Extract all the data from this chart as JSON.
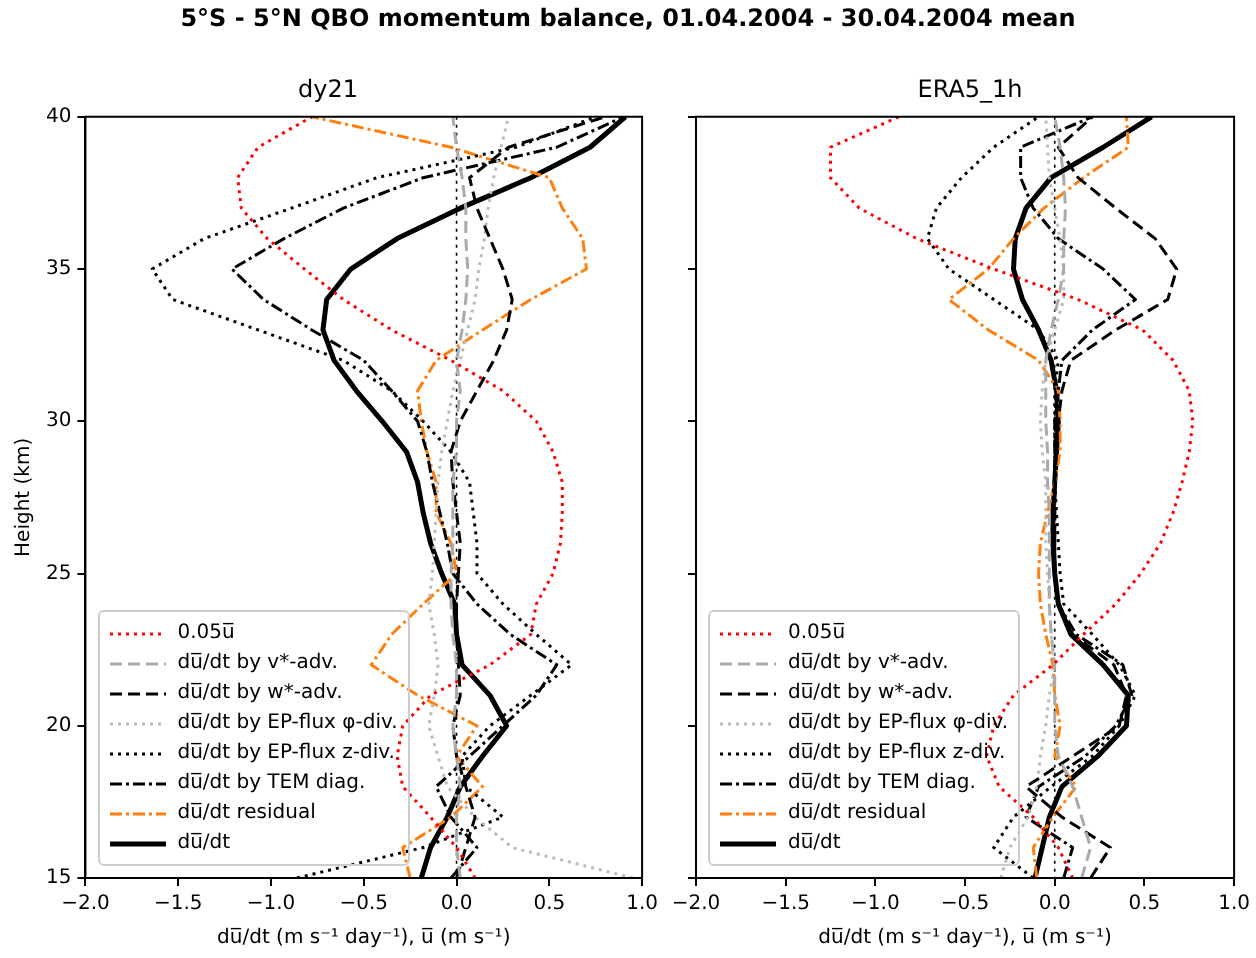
{
  "chart_data": [
    {
      "type": "line",
      "title": "dy21",
      "annotations": [
        "5°S - 5°N QBO momentum balance, 01.04.2004 - 30.04.2004 mean"
      ],
      "xlabel": "du̅/dt (m s⁻¹ day⁻¹), u̅ (m s⁻¹)",
      "ylabel": "Height (km)",
      "xlim": [
        -2,
        1
      ],
      "xticks": [
        {
          "value": -2,
          "label": "−2.0"
        },
        {
          "value": -1.5,
          "label": "−1.5"
        },
        {
          "value": -1,
          "label": "−1.0"
        },
        {
          "value": -0.5,
          "label": "−0.5"
        },
        {
          "value": 0,
          "label": "0.0"
        },
        {
          "value": 0.5,
          "label": "0.5"
        },
        {
          "value": 1,
          "label": "1.0"
        }
      ],
      "ylim": [
        15,
        40
      ],
      "yticks": [
        15,
        20,
        25,
        30,
        35,
        40
      ],
      "grid": false,
      "legend": "bottom left",
      "marker": "none",
      "ref_lines": [
        {
          "axis": "x",
          "value": 0,
          "color": "#000000",
          "line_style": "dotted"
        }
      ],
      "series": [
        {
          "name": "0.05u̅",
          "color": "#ff0000",
          "line_style": "dotted",
          "x": [
            0.1,
            0.0,
            -0.14,
            -0.29,
            -0.32,
            -0.29,
            -0.14,
            0.18,
            0.4,
            0.43,
            0.52,
            0.56,
            0.57,
            0.57,
            0.52,
            0.43,
            0.25,
            -0.03,
            -0.35,
            -0.61,
            -0.82,
            -1.02,
            -1.16,
            -1.18,
            -1.07,
            -0.78
          ],
          "values": [
            15,
            16,
            17,
            18,
            19,
            20,
            21,
            22,
            23,
            24,
            25,
            26,
            27,
            28,
            29,
            30,
            31,
            32,
            33,
            34,
            35,
            36,
            37,
            38,
            39,
            40
          ]
        },
        {
          "name": "du̅/dt by v*-adv.",
          "color": "#aaaaaa",
          "line_style": "dashed",
          "x": [
            0.02,
            0.0,
            0.0,
            0.02,
            0.0,
            -0.02,
            0.0,
            0.0,
            -0.02,
            -0.03,
            -0.03,
            -0.02,
            -0.02,
            -0.02,
            0.0,
            0.0,
            0.02,
            0.0,
            0.03,
            0.05,
            0.06,
            0.05,
            0.05,
            0.03,
            0.0,
            -0.02
          ],
          "values": [
            15,
            16,
            17,
            18,
            19,
            20,
            21,
            22,
            23,
            24,
            25,
            26,
            27,
            28,
            29,
            30,
            31,
            32,
            33,
            34,
            35,
            36,
            37,
            38,
            39,
            40
          ]
        },
        {
          "name": "du̅/dt by w*-adv.",
          "color": "#000000",
          "line_style": "dashed",
          "x": [
            0.0,
            0.05,
            0.1,
            0.05,
            0.0,
            -0.02,
            0.02,
            0.01,
            0.0,
            0.0,
            0.01,
            0.02,
            0.0,
            -0.02,
            -0.03,
            0.02,
            0.11,
            0.2,
            0.27,
            0.3,
            0.25,
            0.18,
            0.11,
            0.07,
            0.28,
            0.8
          ],
          "values": [
            15,
            16,
            17,
            18,
            19,
            20,
            21,
            22,
            23,
            24,
            25,
            26,
            27,
            28,
            29,
            30,
            31,
            32,
            33,
            34,
            35,
            36,
            37,
            38,
            39,
            40
          ]
        },
        {
          "name": "du̅/dt by EP-flux φ-div.",
          "color": "#bbbbbb",
          "line_style": "dotted",
          "x": [
            0.95,
            0.3,
            0.1,
            -0.05,
            -0.1,
            -0.15,
            -0.12,
            -0.1,
            -0.12,
            -0.15,
            -0.13,
            -0.12,
            -0.11,
            -0.1,
            -0.08,
            -0.05,
            -0.02,
            0.02,
            0.06,
            0.1,
            0.12,
            0.15,
            0.17,
            0.2,
            0.24,
            0.28
          ],
          "values": [
            15,
            16,
            17,
            18,
            19,
            20,
            21,
            22,
            23,
            24,
            25,
            26,
            27,
            28,
            29,
            30,
            31,
            32,
            33,
            34,
            35,
            36,
            37,
            38,
            39,
            40
          ]
        },
        {
          "name": "du̅/dt by EP-flux z-div.",
          "color": "#000000",
          "line_style": "dotted",
          "x": [
            -0.86,
            -0.18,
            0.25,
            0.05,
            0.03,
            0.18,
            0.4,
            0.62,
            0.43,
            0.25,
            0.11,
            0.11,
            0.09,
            0.07,
            -0.03,
            -0.18,
            -0.35,
            -0.61,
            -1.07,
            -1.53,
            -1.64,
            -1.36,
            -0.89,
            -0.43,
            0.32,
            0.75
          ],
          "values": [
            15,
            16,
            17,
            18,
            19,
            20,
            21,
            22,
            23,
            24,
            25,
            26,
            27,
            28,
            29,
            30,
            31,
            32,
            33,
            34,
            35,
            36,
            37,
            38,
            39,
            40
          ]
        },
        {
          "name": "du̅/dt by TEM diag.",
          "color": "#000000",
          "line_style": "dashdot",
          "x": [
            -0.03,
            0.11,
            -0.03,
            -0.11,
            0.07,
            0.25,
            0.43,
            0.54,
            0.29,
            0.11,
            -0.02,
            -0.05,
            -0.09,
            -0.13,
            -0.16,
            -0.21,
            -0.35,
            -0.5,
            -0.78,
            -1.04,
            -1.21,
            -0.93,
            -0.61,
            -0.18,
            0.54,
            0.9
          ],
          "values": [
            15,
            16,
            17,
            18,
            19,
            20,
            21,
            22,
            23,
            24,
            25,
            26,
            27,
            28,
            29,
            30,
            31,
            32,
            33,
            34,
            35,
            36,
            37,
            38,
            39,
            40
          ]
        },
        {
          "name": "du̅/dt residual",
          "color": "#ff7f0e",
          "line_style": "dashdot",
          "x": [
            -0.25,
            -0.29,
            -0.03,
            0.14,
            0.0,
            0.11,
            -0.21,
            -0.46,
            -0.35,
            -0.18,
            0.0,
            -0.03,
            -0.11,
            -0.11,
            -0.16,
            -0.19,
            -0.21,
            -0.11,
            0.14,
            0.4,
            0.7,
            0.68,
            0.57,
            0.5,
            -0.03,
            -0.78
          ],
          "values": [
            15,
            16,
            17,
            18,
            19,
            20,
            21,
            22,
            23,
            24,
            25,
            26,
            27,
            28,
            29,
            30,
            31,
            32,
            33,
            34,
            35,
            36,
            37,
            38,
            39,
            40
          ]
        },
        {
          "name": "du̅/dt",
          "color": "#000000",
          "line_style": "solid",
          "x": [
            -0.19,
            -0.14,
            -0.05,
            0.02,
            0.14,
            0.27,
            0.18,
            0.03,
            0.0,
            -0.01,
            -0.08,
            -0.14,
            -0.18,
            -0.21,
            -0.27,
            -0.4,
            -0.54,
            -0.66,
            -0.72,
            -0.7,
            -0.57,
            -0.32,
            0.02,
            0.4,
            0.72,
            0.91
          ],
          "values": [
            15,
            16,
            17,
            18,
            19,
            20,
            21,
            22,
            23,
            24,
            25,
            26,
            27,
            28,
            29,
            30,
            31,
            32,
            33,
            34,
            35,
            36,
            37,
            38,
            39,
            40
          ]
        }
      ]
    },
    {
      "type": "line",
      "title": "ERA5_1h",
      "xlabel": "du̅/dt (m s⁻¹ day⁻¹), u̅ (m s⁻¹)",
      "xlim": [
        -2,
        1
      ],
      "xticks": [
        {
          "value": -2,
          "label": "−2.0"
        },
        {
          "value": -1.5,
          "label": "−1.5"
        },
        {
          "value": -1,
          "label": "−1.0"
        },
        {
          "value": -0.5,
          "label": "−0.5"
        },
        {
          "value": 0,
          "label": "0.0"
        },
        {
          "value": 0.5,
          "label": "0.5"
        },
        {
          "value": 1,
          "label": "1.0"
        }
      ],
      "ylim": [
        15,
        40
      ],
      "yticks": [
        15,
        20,
        25,
        30,
        35,
        40
      ],
      "tick_labels": "x",
      "grid": false,
      "legend": "bottom left",
      "marker": "none",
      "ref_lines": [
        {
          "axis": "x",
          "value": 0,
          "color": "#000000",
          "line_style": "dotted"
        }
      ],
      "series": [
        {
          "name": "0.05u̅",
          "color": "#ff0000",
          "line_style": "dotted",
          "x": [
            0.1,
            0.02,
            -0.12,
            -0.31,
            -0.38,
            -0.34,
            -0.23,
            -0.01,
            0.16,
            0.34,
            0.48,
            0.59,
            0.66,
            0.71,
            0.75,
            0.77,
            0.75,
            0.66,
            0.49,
            0.13,
            -0.34,
            -0.77,
            -1.09,
            -1.25,
            -1.25,
            -0.87
          ],
          "values": [
            15,
            16,
            17,
            18,
            19,
            20,
            21,
            22,
            23,
            24,
            25,
            26,
            27,
            28,
            29,
            30,
            31,
            32,
            33,
            34,
            35,
            36,
            37,
            38,
            39,
            40
          ]
        },
        {
          "name": "du̅/dt by v*-adv.",
          "color": "#aaaaaa",
          "line_style": "dashed",
          "x": [
            0.15,
            0.2,
            0.15,
            0.1,
            0.02,
            0.0,
            0.0,
            0.0,
            -0.02,
            -0.03,
            -0.03,
            -0.03,
            -0.03,
            -0.04,
            -0.04,
            -0.05,
            -0.05,
            -0.05,
            -0.02,
            0.02,
            0.05,
            0.05,
            0.06,
            0.05,
            0.03,
            0.0
          ],
          "values": [
            15,
            16,
            17,
            18,
            19,
            20,
            21,
            22,
            23,
            24,
            25,
            26,
            27,
            28,
            29,
            30,
            31,
            32,
            33,
            34,
            35,
            36,
            37,
            38,
            39,
            40
          ]
        },
        {
          "name": "du̅/dt by w*-adv.",
          "color": "#000000",
          "line_style": "dashed",
          "x": [
            0.2,
            0.31,
            0.04,
            -0.16,
            0.1,
            0.36,
            0.4,
            0.33,
            0.1,
            0.02,
            0.0,
            0.0,
            0.0,
            0.0,
            0.01,
            0.02,
            0.04,
            0.09,
            0.34,
            0.63,
            0.68,
            0.56,
            0.34,
            0.13,
            0.02,
            0.21
          ],
          "values": [
            15,
            16,
            17,
            18,
            19,
            20,
            21,
            22,
            23,
            24,
            25,
            26,
            27,
            28,
            29,
            30,
            31,
            32,
            33,
            34,
            35,
            36,
            37,
            38,
            39,
            40
          ]
        },
        {
          "name": "du̅/dt by EP-flux φ-div.",
          "color": "#bbbbbb",
          "line_style": "dotted",
          "x": [
            -0.3,
            -0.25,
            -0.15,
            -0.1,
            -0.08,
            -0.05,
            -0.03,
            0.0,
            -0.02,
            -0.03,
            -0.04,
            -0.05,
            -0.05,
            -0.05,
            -0.07,
            -0.08,
            -0.07,
            -0.05,
            0.0,
            0.05,
            0.05,
            0.03,
            0.0,
            -0.03,
            -0.04,
            -0.05
          ],
          "values": [
            15,
            16,
            17,
            18,
            19,
            20,
            21,
            22,
            23,
            24,
            25,
            26,
            27,
            28,
            29,
            30,
            31,
            32,
            33,
            34,
            35,
            36,
            37,
            38,
            39,
            40
          ]
        },
        {
          "name": "du̅/dt by EP-flux z-div.",
          "color": "#000000",
          "line_style": "dotted",
          "x": [
            -0.12,
            -0.34,
            -0.23,
            -0.02,
            0.21,
            0.36,
            0.45,
            0.36,
            0.21,
            0.05,
            0.03,
            0.02,
            0.01,
            0.0,
            0.0,
            0.0,
            0.0,
            0.02,
            -0.09,
            -0.34,
            -0.59,
            -0.71,
            -0.66,
            -0.52,
            -0.34,
            -0.09
          ],
          "values": [
            15,
            16,
            17,
            18,
            19,
            20,
            21,
            22,
            23,
            24,
            25,
            26,
            27,
            28,
            29,
            30,
            31,
            32,
            33,
            34,
            35,
            36,
            37,
            38,
            39,
            40
          ]
        },
        {
          "name": "du̅/dt by TEM diag.",
          "color": "#000000",
          "line_style": "dashdot",
          "x": [
            0.05,
            0.1,
            -0.16,
            -0.09,
            0.17,
            0.34,
            0.43,
            0.38,
            0.12,
            0.02,
            0.0,
            0.0,
            0.0,
            0.0,
            0.0,
            0.0,
            0.02,
            0.04,
            0.21,
            0.45,
            0.27,
            0.02,
            -0.12,
            -0.19,
            -0.19,
            0.21
          ],
          "values": [
            15,
            16,
            17,
            18,
            19,
            20,
            21,
            22,
            23,
            24,
            25,
            26,
            27,
            28,
            29,
            30,
            31,
            32,
            33,
            34,
            35,
            36,
            37,
            38,
            39,
            40
          ]
        },
        {
          "name": "du̅/dt residual",
          "color": "#ff7f0e",
          "line_style": "dashdot",
          "x": [
            -0.1,
            -0.12,
            -0.01,
            0.12,
            0.0,
            0.03,
            0.0,
            -0.01,
            -0.05,
            -0.08,
            -0.09,
            -0.08,
            -0.04,
            0.0,
            0.03,
            0.03,
            0.02,
            -0.09,
            -0.37,
            -0.59,
            -0.37,
            -0.23,
            -0.06,
            0.16,
            0.41,
            0.4
          ],
          "values": [
            15,
            16,
            17,
            18,
            19,
            20,
            21,
            22,
            23,
            24,
            25,
            26,
            27,
            28,
            29,
            30,
            31,
            32,
            33,
            34,
            35,
            36,
            37,
            38,
            39,
            40
          ]
        },
        {
          "name": "du̅/dt",
          "color": "#000000",
          "line_style": "solid",
          "x": [
            -0.11,
            -0.07,
            -0.03,
            0.04,
            0.24,
            0.4,
            0.41,
            0.27,
            0.09,
            0.02,
            0.0,
            -0.01,
            -0.01,
            0.0,
            0.01,
            0.02,
            0.01,
            -0.02,
            -0.09,
            -0.18,
            -0.23,
            -0.22,
            -0.16,
            -0.02,
            0.27,
            0.54
          ],
          "values": [
            15,
            16,
            17,
            18,
            19,
            20,
            21,
            22,
            23,
            24,
            25,
            26,
            27,
            28,
            29,
            30,
            31,
            32,
            33,
            34,
            35,
            36,
            37,
            38,
            39,
            40
          ]
        }
      ]
    }
  ]
}
